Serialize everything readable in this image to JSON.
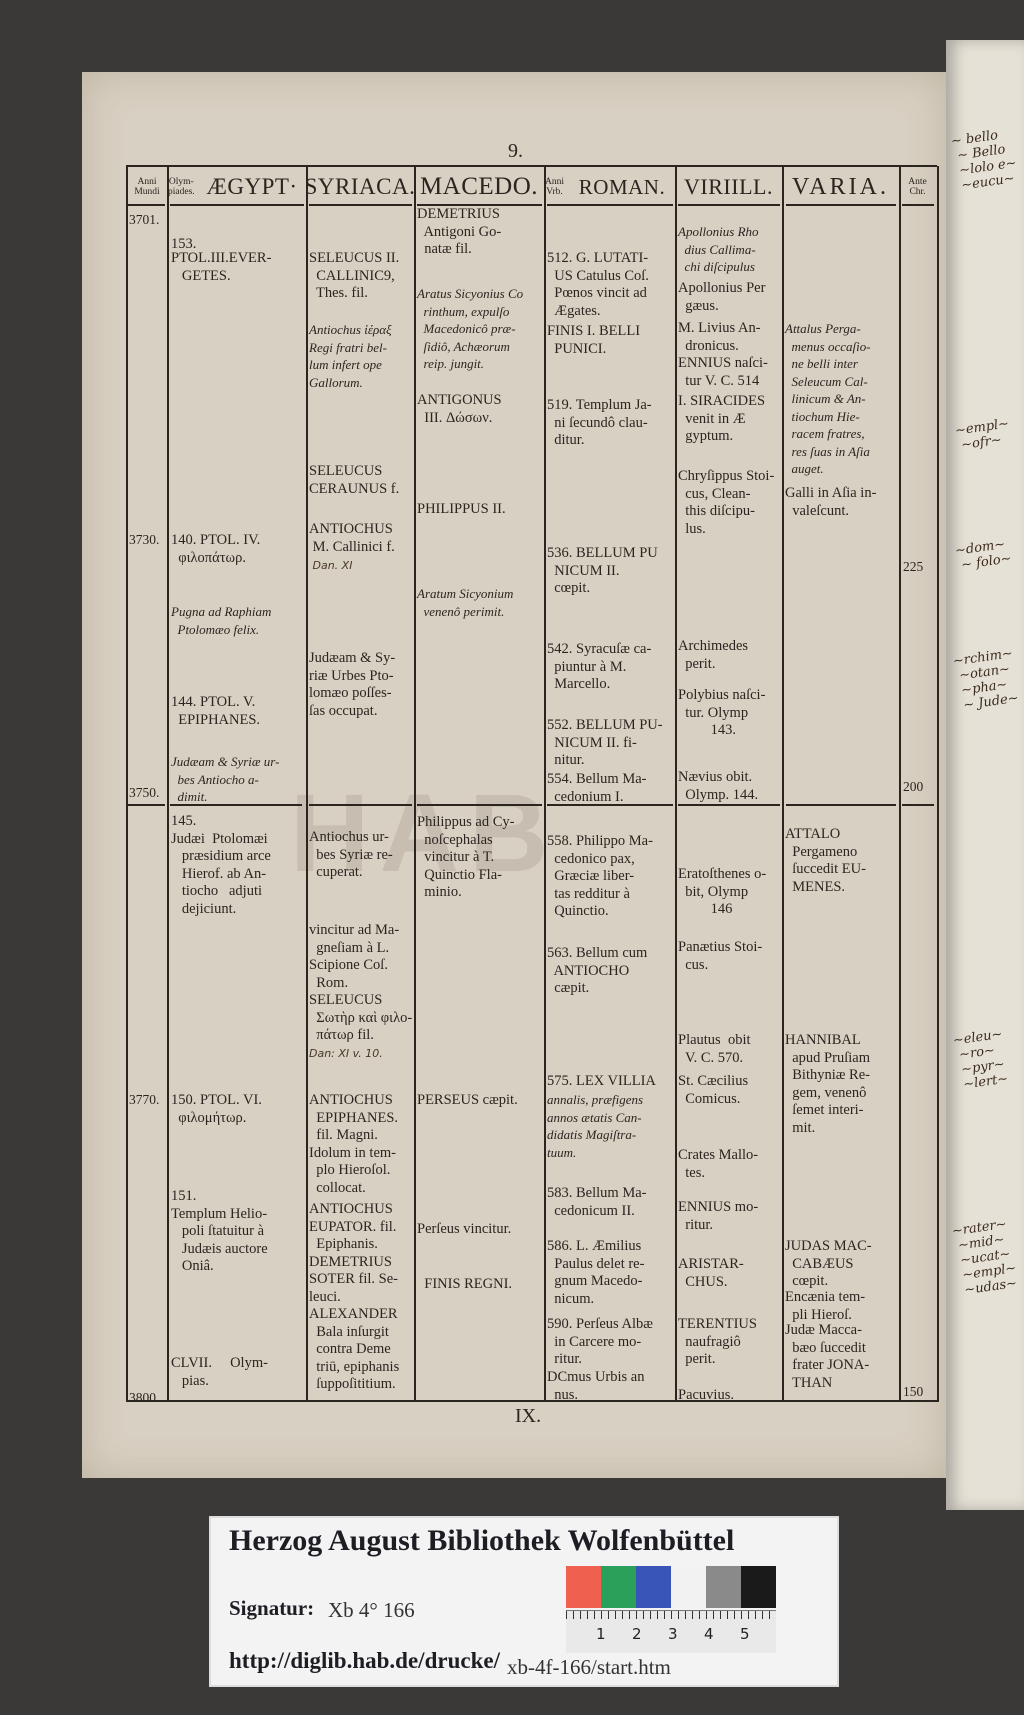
{
  "page_number": "9.",
  "page_roman": "IX.",
  "watermark": "HAB",
  "headers": {
    "anni_mundi": "Anni\nMundi",
    "olympiades": "Olym-\npiades.",
    "aegypt": "ÆGYPT·",
    "syriaca": "SYRIACA.",
    "macedo": "MACEDO.",
    "anni_urb": "Anni\nVrb.",
    "roman": "ROMAN.",
    "viri_ill": "VIRIILL.",
    "varia": "VARIA.",
    "ante_chr": "Ante\nChr."
  },
  "anni_mundi": [
    "3701.",
    "3730.",
    "3750.",
    "3770.",
    "3800."
  ],
  "ante_chr": [
    "225",
    "200",
    "150"
  ],
  "columns": {
    "aegypt": [
      {
        "text": "153."
      },
      {
        "text": "PTOL.III.EVER-\n   GETES."
      },
      {
        "text": "140. PTOL. IV.\n  φιλοπάτωρ."
      },
      {
        "text": "Pugna ad Raphiam\n  Ptolomæo felix.",
        "italic": true
      },
      {
        "text": "144. PTOL. V.\n  EPIPHANES."
      },
      {
        "text": "Judæam & Syriæ ur-\n  bes Antiocho a-\n  dimit.",
        "italic": true
      },
      {
        "text": "145.\nJudæi  Ptolomæi\n   præsidium arce\n   Hierof. ab An-\n   tiocho   adjuti\n   dejiciunt."
      },
      {
        "text": "150. PTOL. VI.\n  φιλομήτωρ."
      },
      {
        "text": "151.\nTemplum Helio-\n   poli ſtatuitur à\n   Judæis auctore\n   Oniâ."
      },
      {
        "text": "CLVII.     Olym-\n   pias."
      }
    ],
    "syriaca": [
      {
        "text": "SELEUCUS II.\n  CALLINIC9,\n  Thes. fil."
      },
      {
        "text": "Antiochus ἱέραξ\nRegi fratri bel-\nlum infert ope\nGallorum.",
        "italic": true
      },
      {
        "text": "SELEUCUS\nCERAUNUS f."
      },
      {
        "text": "ANTIOCHUS\n M. Callinici f."
      },
      {
        "text": " Dan. XI",
        "hand": true
      },
      {
        "text": "Judæam & Sy-\nriæ Urbes Pto-\nlomæo poſſes-\nſas occupat."
      },
      {
        "text": "Antiochus ur-\n  bes Syriæ re-\n  cuperat."
      },
      {
        "text": "vincitur ad Ma-\n  gneſiam à L.\nScipione Coſ.\n  Rom.\nSELEUCUS\n  Σωτὴρ καὶ φιλο-\n  πάτωρ fil."
      },
      {
        "text": "Dan: XI v. 10.",
        "hand": true
      },
      {
        "text": "ANTIOCHUS\n  EPIPHANES.\n  fil. Magni.\nIdolum in tem-\n  plo Hieroſol.\n  collocat."
      },
      {
        "text": "ANTIOCHUS\nEUPATOR. fil.\n  Epiphanis.\nDEMETRIUS\nSOTER fil. Se-\nleuci.\nALEXANDER\n  Bala inſurgit\n  contra Deme\n  triū, epiphanis\n  ſuppoſititium."
      }
    ],
    "macedo": [
      {
        "text": "DEMETRIUS\n  Antigoni Go-\n  natæ fil."
      },
      {
        "text": "Aratus Sicyonius Co\n  rinthum, expulſo\n  Macedonicô præ-\n  ſidiô, Achæorum\n  reip. jungit.",
        "italic": true
      },
      {
        "text": "ANTIGONUS\n  III. Δώσων."
      },
      {
        "text": "PHILIPPUS II."
      },
      {
        "text": "Aratum Sicyonium\n  venenô perimit.",
        "italic": true
      },
      {
        "text": "Philippus ad Cy-\n  noſcephalas\n  vincitur à T.\n  Quinctio Fla-\n  minio."
      },
      {
        "text": "PERSEUS cæpit."
      },
      {
        "text": "Perſeus vincitur."
      },
      {
        "text": "  FINIS REGNI."
      }
    ],
    "roman": [
      {
        "text": "512. G. LUTATI-\n  US Catulus Coſ.\n  Pœnos vincit ad\n  Ægates."
      },
      {
        "text": "FINIS I. BELLI\n  PUNICI."
      },
      {
        "text": "519. Templum Ja-\n  ni ſecundô clau-\n  ditur."
      },
      {
        "text": "536. BELLUM PU\n  NICUM II.\n  cœpit."
      },
      {
        "text": "542. Syracuſæ ca-\n  piuntur à M.\n  Marcello."
      },
      {
        "text": "552. BELLUM PU-\n  NICUM II. fi-\n  nitur."
      },
      {
        "text": "554. Bellum Ma-\n  cedonium I."
      },
      {
        "text": "558. Philippo Ma-\n  cedonico pax,\n  Græciæ liber-\n  tas redditur à\n  Quinctio."
      },
      {
        "text": "563. Bellum cum\n  ANTIOCHO\n  cæpit."
      },
      {
        "text": "575. LEX VILLIA"
      },
      {
        "text": "annalis, præfigens\nannos ætatis Can-\ndidatis Magiſtra-\ntuum.",
        "italic": true
      },
      {
        "text": "583. Bellum Ma-\n  cedonicum II."
      },
      {
        "text": "586. L. Æmilius\n  Paulus delet re-\n  gnum Macedo-\n  nicum."
      },
      {
        "text": "590. Perſeus Albæ\n  in Carcere mo-\n  ritur."
      },
      {
        "text": "DCmus Urbis an\n  nus."
      }
    ],
    "viri_ill": [
      {
        "text": "Apollonius Rho\n  dius Callima-\n  chi diſcipulus",
        "italic": true
      },
      {
        "text": "Apollonius Per\n  gæus."
      },
      {
        "text": "M. Livius An-\n  dronicus."
      },
      {
        "text": "ENNIUS naſci-\n  tur V. C. 514"
      },
      {
        "text": "I. SIRACIDES\n  venit in Æ\n  gyptum."
      },
      {
        "text": "Chryſippus Stoi-\n  cus, Clean-\n  this diſcipu-\n  lus."
      },
      {
        "text": "Archimedes\n  perit."
      },
      {
        "text": "Polybius naſci-\n  tur. Olymp\n         143."
      },
      {
        "text": "Nævius obit.\n  Olymp. 144."
      },
      {
        "text": "Eratoſthenes o-\n  bit, Olymp\n         146"
      },
      {
        "text": "Panætius Stoi-\n  cus."
      },
      {
        "text": "Plautus  obit\n  V. C. 570."
      },
      {
        "text": "St. Cæcilius\n  Comicus."
      },
      {
        "text": "Crates Mallo-\n  tes."
      },
      {
        "text": "ENNIUS mo-\n  ritur."
      },
      {
        "text": "ARISTAR-\n  CHUS."
      },
      {
        "text": "TERENTIUS\n  naufragiô\n  perit."
      },
      {
        "text": "Pacuvius."
      }
    ],
    "varia": [
      {
        "text": "Attalus Perga-\n  menus occaſio-\n  ne belli inter\n  Seleucum Cal-\n  linicum & An-\n  tiochum Hie-\n  racem fratres,\n  res ſuas in Aſia\n  auget.",
        "italic": true
      },
      {
        "text": "Galli in Aſia in-\n  valeſcunt."
      },
      {
        "text": "ATTALO\n  Pergameno\n  ſuccedit EU-\n  MENES."
      },
      {
        "text": "HANNIBAL\n  apud Pruſiam\n  Bithyniæ Re-\n  gem, venenô\n  ſemet interi-\n  mit."
      },
      {
        "text": "JUDAS MAC-\n  CABÆUS\n  cœpit."
      },
      {
        "text": "Encænia tem-\n  pli Hieroſ."
      },
      {
        "text": "Judæ Macca-\n  bæo ſuccedit\n  frater JONA-\n  THAN"
      }
    ]
  },
  "label": {
    "title": "Herzog August Bibliothek Wolfenbüttel",
    "signatur_label": "Signatur:",
    "signatur_value": "Xb 4° 166",
    "url_base": "http://diglib.hab.de/drucke/",
    "url_path": "xb-4f-166/start.htm",
    "ruler_numbers": [
      "1",
      "2",
      "3",
      "4",
      "5"
    ],
    "color_patches": [
      "#f0604f",
      "#2aa05a",
      "#3a55b8",
      "#f2f2f2",
      "#8a8a8a",
      "#1a1a1a"
    ]
  }
}
